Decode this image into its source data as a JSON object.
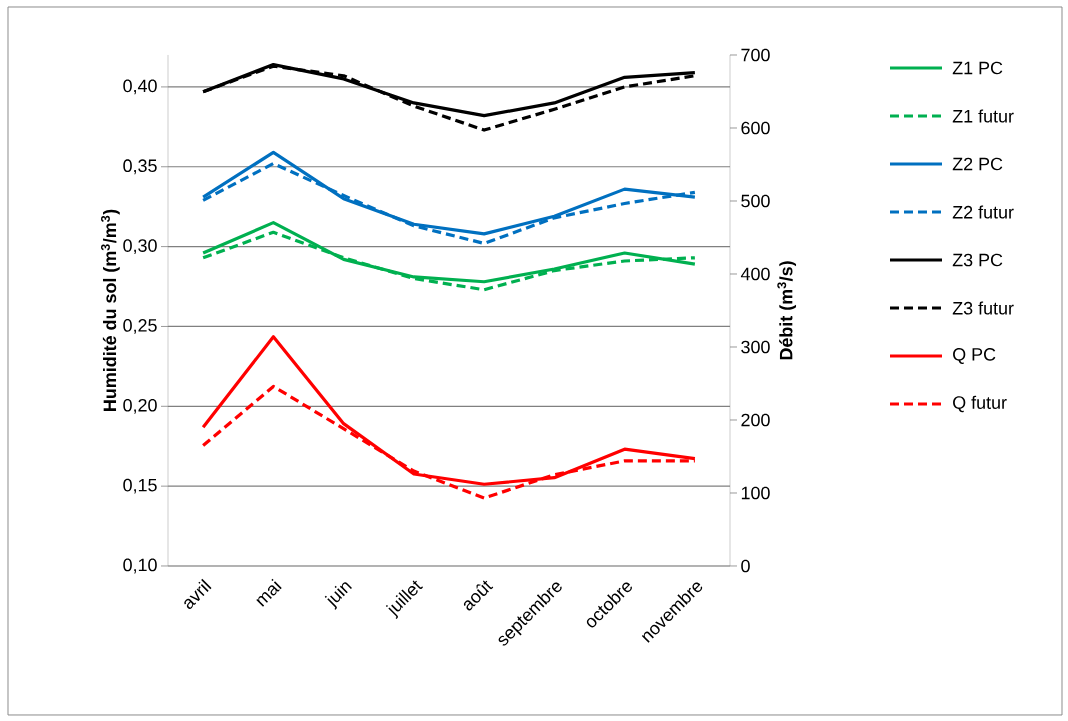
{
  "chart_data": {
    "type": "line",
    "categories": [
      "avril",
      "mai",
      "juin",
      "juillet",
      "août",
      "septembre",
      "octobre",
      "novembre"
    ],
    "ylabel": "Humidité du sol (m$^{3}$/m$^{3}$)",
    "y2label": "Débit (m$^{3}$/s)",
    "ylim": [
      0.1,
      0.42
    ],
    "yticks": [
      {
        "value": 0.1,
        "label": "0,10"
      },
      {
        "value": 0.15,
        "label": "0,15"
      },
      {
        "value": 0.2,
        "label": "0,20"
      },
      {
        "value": 0.25,
        "label": "0,25"
      },
      {
        "value": 0.3,
        "label": "0,30"
      },
      {
        "value": 0.35,
        "label": "0,35"
      },
      {
        "value": 0.4,
        "label": "0,40"
      }
    ],
    "y2lim": [
      0,
      700
    ],
    "y2ticks": [
      0,
      100,
      200,
      300,
      400,
      500,
      600,
      700
    ],
    "grid": "y",
    "legend": "right",
    "series": [
      {
        "name": "Z1 PC",
        "color": "#00b050",
        "line_style": "solid",
        "values": [
          0.296,
          0.315,
          0.292,
          0.281,
          0.278,
          0.286,
          0.296,
          0.289
        ]
      },
      {
        "name": "Z1 futur",
        "color": "#00b050",
        "line_style": "dashed",
        "values": [
          0.293,
          0.309,
          0.293,
          0.28,
          0.273,
          0.285,
          0.291,
          0.293
        ]
      },
      {
        "name": "Z2 PC",
        "color": "#0070c0",
        "line_style": "solid",
        "values": [
          0.331,
          0.359,
          0.33,
          0.314,
          0.308,
          0.319,
          0.336,
          0.331
        ]
      },
      {
        "name": "Z2 futur",
        "color": "#0070c0",
        "line_style": "dashed",
        "values": [
          0.329,
          0.352,
          0.332,
          0.313,
          0.302,
          0.318,
          0.327,
          0.334
        ]
      },
      {
        "name": "Z3 PC",
        "color": "#000000",
        "line_style": "solid",
        "values": [
          0.397,
          0.414,
          0.405,
          0.39,
          0.382,
          0.39,
          0.406,
          0.409
        ]
      },
      {
        "name": "Z3 futur",
        "color": "#000000",
        "line_style": "dashed",
        "values": [
          0.397,
          0.413,
          0.407,
          0.388,
          0.373,
          0.386,
          0.4,
          0.407
        ]
      },
      {
        "name": "Q PC",
        "color": "#ff0000",
        "line_style": "solid",
        "axis": "y2",
        "values": [
          190,
          314,
          195,
          126,
          112,
          121,
          160,
          147
        ]
      },
      {
        "name": "Q futur",
        "color": "#ff0000",
        "line_style": "dashed",
        "axis": "y2",
        "values": [
          165,
          246,
          188,
          130,
          93,
          125,
          144,
          144
        ]
      }
    ]
  }
}
